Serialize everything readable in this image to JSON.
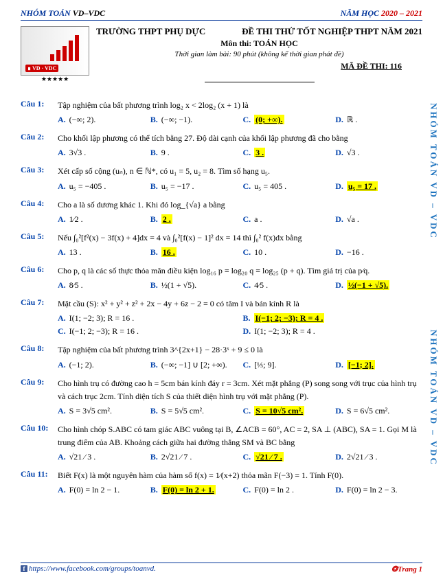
{
  "top": {
    "group_a": "NHÓM ",
    "group_b": "TOÁN ",
    "group_c": "VD–VDC",
    "year_prefix": "NĂM HỌC ",
    "year": "2020 – 2021"
  },
  "header": {
    "school": "TRƯỜNG THPT PHỤ DỰC",
    "exam_title": "ĐỀ THI THỬ TỐT NGHIỆP THPT NĂM 2021",
    "subject": "Môn thi: TOÁN HỌC",
    "time": "Thời gian làm bài: 90 phút (không kể thời gian phát đề)",
    "code": "MÃ ĐỀ THI: 116",
    "stars": "★★★★★",
    "vd": "∎ VD · VDC"
  },
  "watermark": "NHÓM TOÁN VD – VDC",
  "questions": [
    {
      "label": "Câu 1:",
      "text": "Tập nghiệm của bất phương trình  log₂ x < 2log₂ (x + 1)  là",
      "opts": [
        {
          "l": "A.",
          "t": "(−∞; 2).",
          "hl": false
        },
        {
          "l": "B.",
          "t": "(−∞; −1).",
          "hl": false
        },
        {
          "l": "C.",
          "t": "(0; +∞).",
          "hl": true
        },
        {
          "l": "D.",
          "t": "ℝ .",
          "hl": false
        }
      ]
    },
    {
      "label": "Câu 2:",
      "text": "Cho khối lập phương có thể tích bằng 27. Độ dài cạnh của khối lập phương đã cho bằng",
      "opts": [
        {
          "l": "A.",
          "t": "3√3 .",
          "hl": false
        },
        {
          "l": "B.",
          "t": "9 .",
          "hl": false
        },
        {
          "l": "C.",
          "t": "3 .",
          "hl": true
        },
        {
          "l": "D.",
          "t": "√3 .",
          "hl": false
        }
      ]
    },
    {
      "label": "Câu 3:",
      "text": "Xét cấp số cộng (uₙ), n ∈ ℕ*, có u₁ = 5, u₂ = 8. Tìm số hạng u₅.",
      "opts": [
        {
          "l": "A.",
          "t": "u₅ = −405 .",
          "hl": false
        },
        {
          "l": "B.",
          "t": "u₅ = −17 .",
          "hl": false
        },
        {
          "l": "C.",
          "t": "u₅ = 405 .",
          "hl": false
        },
        {
          "l": "D.",
          "t": "u₅ = 17 .",
          "hl": true
        }
      ]
    },
    {
      "label": "Câu 4:",
      "text": "Cho a là số dương khác 1. Khi đó log_{√a} a bằng",
      "opts": [
        {
          "l": "A.",
          "t": "1⁄2 .",
          "hl": false
        },
        {
          "l": "B.",
          "t": "2 .",
          "hl": true
        },
        {
          "l": "C.",
          "t": "a .",
          "hl": false
        },
        {
          "l": "D.",
          "t": "√a .",
          "hl": false
        }
      ]
    },
    {
      "label": "Câu 5:",
      "text": "Nếu ∫₀²[f²(x) − 3f(x) + 4]dx = 4  và  ∫₀²[f(x) − 1]² dx = 14  thì  ∫₀² f(x)dx  bằng",
      "opts": [
        {
          "l": "A.",
          "t": "13 .",
          "hl": false
        },
        {
          "l": "B.",
          "t": "16 .",
          "hl": true
        },
        {
          "l": "C.",
          "t": "10 .",
          "hl": false
        },
        {
          "l": "D.",
          "t": "−16 .",
          "hl": false
        }
      ]
    },
    {
      "label": "Câu 6:",
      "text": "Cho p, q là các số thực thỏa mãn điều kiện  log₁₆ p = log₂₀ q = log₂₅ (p + q). Tìm giá trị của p⁄q.",
      "opts": [
        {
          "l": "A.",
          "t": "8⁄5 .",
          "hl": false
        },
        {
          "l": "B.",
          "t": "½(1 + √5).",
          "hl": false
        },
        {
          "l": "C.",
          "t": "4⁄5 .",
          "hl": false
        },
        {
          "l": "D.",
          "t": "½(−1 + √5).",
          "hl": true
        }
      ]
    },
    {
      "label": "Câu 7:",
      "text": "Mặt cầu (S): x² + y² + z² + 2x − 4y + 6z − 2 = 0 có tâm I và bán kính R là",
      "two": true,
      "opts": [
        {
          "l": "A.",
          "t": "I(1; −2; 3); R = 16 .",
          "hl": false
        },
        {
          "l": "B.",
          "t": "I(−1; 2; −3); R = 4 .",
          "hl": true
        },
        {
          "l": "C.",
          "t": "I(−1; 2; −3); R = 16 .",
          "hl": false
        },
        {
          "l": "D.",
          "t": "I(1; −2; 3); R = 4 .",
          "hl": false
        }
      ]
    },
    {
      "label": "Câu 8:",
      "text": "Tập nghiệm của bất phương trình  3^{2x+1} − 28·3ˣ + 9 ≤ 0  là",
      "opts": [
        {
          "l": "A.",
          "t": "(−1; 2).",
          "hl": false
        },
        {
          "l": "B.",
          "t": "(−∞; −1] ∪ [2; +∞).",
          "hl": false
        },
        {
          "l": "C.",
          "t": "[⅓; 9].",
          "hl": false
        },
        {
          "l": "D.",
          "t": "[−1; 2].",
          "hl": true
        }
      ]
    },
    {
      "label": "Câu 9:",
      "text": "Cho hình trụ có đường cao h = 5cm bán kính đáy r = 3cm. Xét mặt phẳng (P) song song với trục của hình trụ và cách trục 2cm. Tính diện tích S của thiết diện hình trụ với mặt phẳng (P).",
      "opts": [
        {
          "l": "A.",
          "t": "S = 3√5 cm².",
          "hl": false
        },
        {
          "l": "B.",
          "t": "S = 5√5 cm².",
          "hl": false
        },
        {
          "l": "C.",
          "t": "S = 10√5 cm².",
          "hl": true
        },
        {
          "l": "D.",
          "t": "S = 6√5 cm².",
          "hl": false
        }
      ]
    },
    {
      "label": "Câu 10:",
      "text": "Cho hình chóp S.ABC có tam giác ABC vuông tại B, ∠ACB = 60°, AC = 2, SA ⊥ (ABC), SA = 1. Gọi M là trung điểm của AB. Khoảng cách giữa hai đường thẳng SM và BC bằng",
      "opts": [
        {
          "l": "A.",
          "t": "√21 ⁄ 3 .",
          "hl": false
        },
        {
          "l": "B.",
          "t": "2√21 ⁄ 7 .",
          "hl": false
        },
        {
          "l": "C.",
          "t": "√21 ⁄ 7 .",
          "hl": true
        },
        {
          "l": "D.",
          "t": "2√21 ⁄ 3 .",
          "hl": false
        }
      ]
    },
    {
      "label": "Câu 11:",
      "text": "Biết F(x) là một nguyên hàm của hàm số f(x) = 1⁄(x+2) thỏa mãn F(−3) = 1. Tính F(0).",
      "opts": [
        {
          "l": "A.",
          "t": "F(0) = ln 2 − 1.",
          "hl": false
        },
        {
          "l": "B.",
          "t": "F(0) = ln 2 + 1.",
          "hl": true
        },
        {
          "l": "C.",
          "t": "F(0) = ln 2 .",
          "hl": false
        },
        {
          "l": "D.",
          "t": "F(0) = ln 2 − 3.",
          "hl": false
        }
      ]
    }
  ],
  "footer": {
    "url": "https://www.facebook.com/groups/toanvd.",
    "page": "Trang 1"
  }
}
